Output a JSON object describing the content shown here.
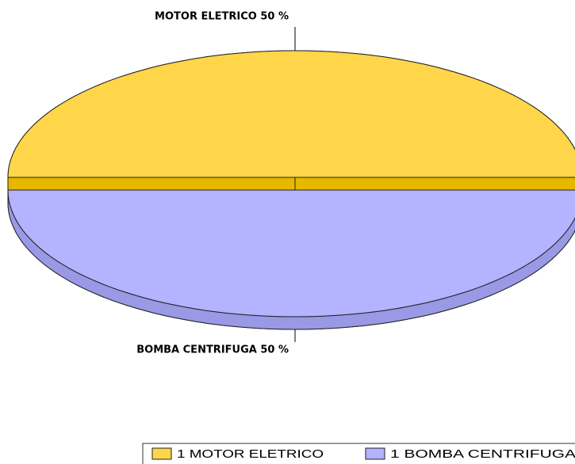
{
  "chart_data": {
    "type": "pie",
    "categories": [
      "1 MOTOR ELETRICO",
      "1 BOMBA CENTRIFUGA"
    ],
    "values": [
      50,
      50
    ],
    "value_labels": [
      "MOTOR ELETRICO 50 %",
      "BOMBA CENTRIFUGA 50 %"
    ],
    "colors": [
      "#ffd54a",
      "#b3b3ff"
    ],
    "side_colors": [
      "#e6b800",
      "#9999e6"
    ],
    "legend": "bottom"
  }
}
